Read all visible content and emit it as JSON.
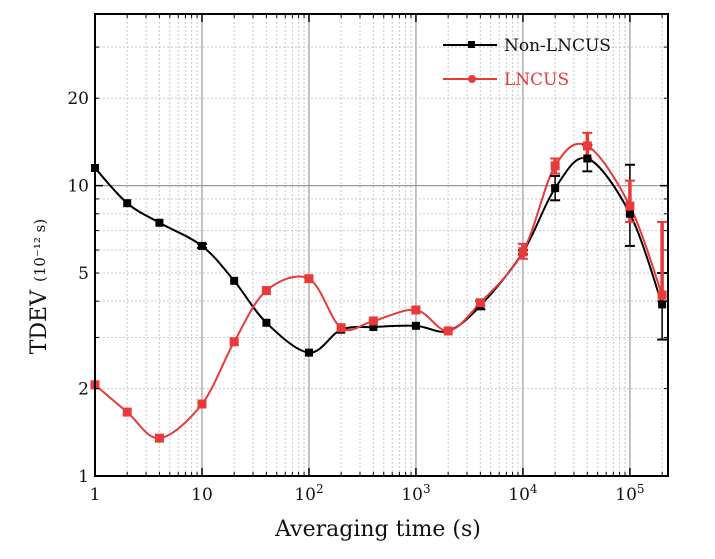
{
  "chart_data": {
    "type": "line",
    "title": "",
    "xlabel": "Averaging time (s)",
    "ylabel_main": "TDEV",
    "ylabel_unit": "(10⁻¹² s)",
    "xscale": "log",
    "yscale": "log",
    "xlim": [
      1,
      227000
    ],
    "ylim": [
      1,
      39
    ],
    "grid": true,
    "legend_position": "top-right",
    "x_ticks": [
      {
        "value": 1,
        "label": "1",
        "sup": ""
      },
      {
        "value": 10,
        "label": "10",
        "sup": ""
      },
      {
        "value": 100,
        "label": "10",
        "sup": "2"
      },
      {
        "value": 1000,
        "label": "10",
        "sup": "3"
      },
      {
        "value": 10000,
        "label": "10",
        "sup": "4"
      },
      {
        "value": 100000,
        "label": "10",
        "sup": "5"
      }
    ],
    "y_ticks": [
      {
        "value": 1,
        "label": "1"
      },
      {
        "value": 2,
        "label": "2"
      },
      {
        "value": 5,
        "label": "5"
      },
      {
        "value": 10,
        "label": "10"
      },
      {
        "value": 20,
        "label": "20"
      }
    ],
    "x": [
      1,
      2,
      4,
      10,
      20,
      40,
      100,
      200,
      400,
      1000,
      2000,
      4000,
      10000,
      20000,
      40000,
      100000,
      200000
    ],
    "series": [
      {
        "name": "Non-LNCUS",
        "color": "#000000",
        "marker": "square",
        "values": [
          11.5,
          8.7,
          7.45,
          6.2,
          4.7,
          3.37,
          2.66,
          3.19,
          3.26,
          3.29,
          3.16,
          3.86,
          5.9,
          9.8,
          12.4,
          8.0,
          3.9
        ],
        "err_low": [
          11.5,
          8.7,
          7.45,
          6.1,
          4.7,
          3.37,
          2.66,
          3.19,
          3.26,
          3.27,
          3.16,
          3.75,
          5.8,
          8.9,
          11.2,
          6.2,
          2.95
        ],
        "err_high": [
          11.5,
          8.7,
          7.45,
          6.3,
          4.7,
          3.37,
          2.66,
          3.19,
          3.26,
          3.31,
          3.16,
          4.0,
          6.0,
          10.8,
          13.8,
          11.8,
          5.0
        ]
      },
      {
        "name": "LNCUS",
        "color": "#e8393b",
        "marker": "square",
        "values": [
          2.06,
          1.66,
          1.35,
          1.77,
          2.9,
          4.35,
          4.78,
          3.24,
          3.42,
          3.73,
          3.16,
          3.95,
          5.92,
          11.7,
          13.7,
          8.5,
          4.2
        ],
        "err_low": [
          2.06,
          1.66,
          1.35,
          1.77,
          2.9,
          4.35,
          4.78,
          3.24,
          3.42,
          3.73,
          3.16,
          3.85,
          5.6,
          11.0,
          12.4,
          7.5,
          4.0
        ],
        "err_high": [
          2.06,
          1.66,
          1.35,
          1.77,
          2.9,
          4.35,
          4.78,
          3.24,
          3.42,
          3.73,
          3.16,
          4.05,
          6.3,
          12.4,
          15.2,
          10.4,
          7.5
        ]
      }
    ]
  }
}
